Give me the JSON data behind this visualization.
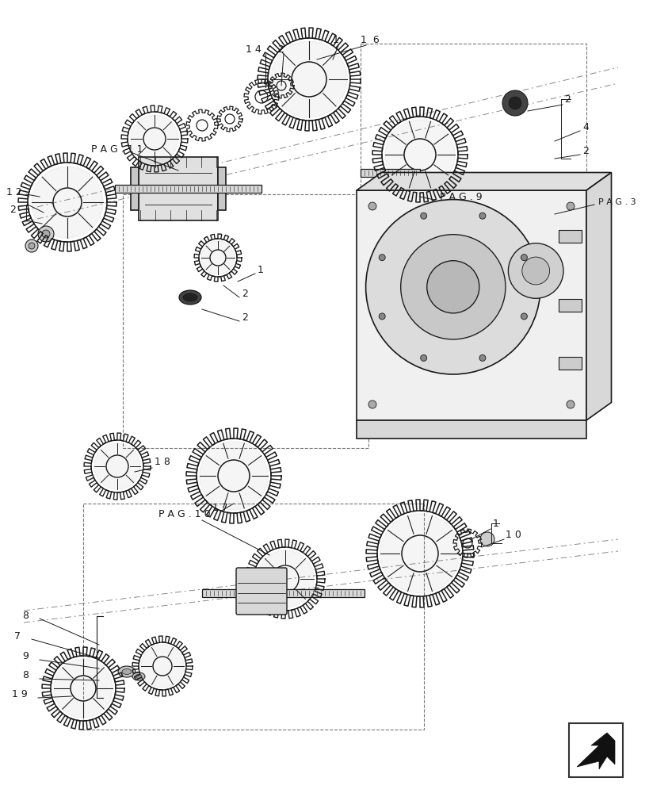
{
  "bg_color": "#ffffff",
  "lc": "#1a1a1a",
  "labels": {
    "pag11": "P A G . 1 1",
    "pag9": "P A G . 9",
    "pag3": "P A G . 3",
    "pag10": "P A G . 1 0"
  }
}
